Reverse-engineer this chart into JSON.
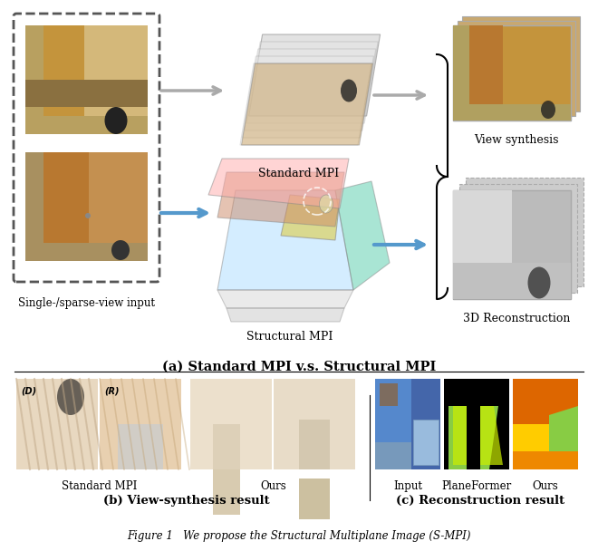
{
  "title": "Figure 1   We propose the Structural Multiplane Image (S-MPI)",
  "subtitle_a": "(a) Standard MPI v.s. Structural MPI",
  "subtitle_b": "(b) View-synthesis result",
  "subtitle_c": "(c) Reconstruction result",
  "label_standard_mpi": "Standard MPI",
  "label_structural_mpi": "Structural MPI",
  "label_single_sparse": "Single-/sparse-view input",
  "label_view_synthesis": "View synthesis",
  "label_3d_recon": "3D Reconstruction",
  "label_std_mpi_b": "Standard MPI",
  "label_ours_b": "Ours",
  "label_input_c": "Input",
  "label_planeformer_c": "PlaneFormer",
  "label_ours_c": "Ours",
  "label_D": "(D)",
  "label_R": "(R)",
  "bg_color": "#ffffff",
  "fig_width": 6.4,
  "fig_height": 5.83
}
